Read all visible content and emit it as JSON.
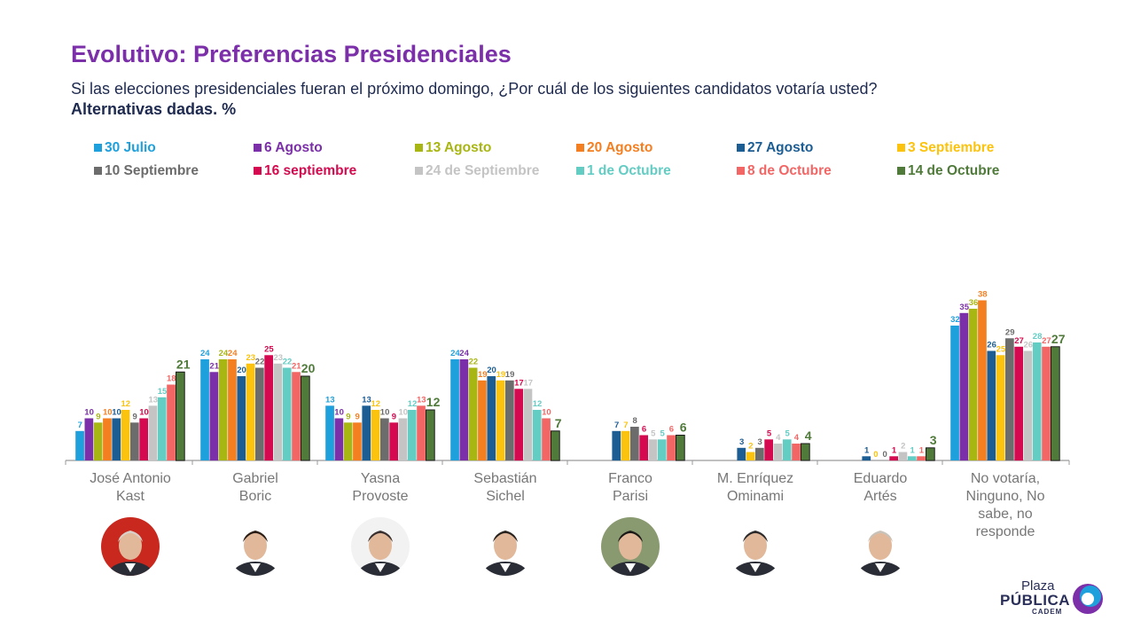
{
  "header": {
    "title": "Evolutivo: Preferencias Presidenciales",
    "subtitle": "Si las elecciones presidenciales fueran el próximo domingo, ¿Por cuál de los siguientes candidatos votaría usted?",
    "subtitle2": "Alternativas dadas. %"
  },
  "chart_data": {
    "type": "bar",
    "categories": [
      "José Antonio\nKast",
      "Gabriel\nBoric",
      "Yasna\nProvoste",
      "Sebastián\nSichel",
      "Franco\nParisi",
      "M. Enríquez\nOminami",
      "Eduardo\nArtés",
      "No votaría,\nNinguno, No\nsabe, no\nresponde"
    ],
    "series": [
      {
        "name": "30 Julio",
        "color": "#1ea0dc",
        "values": [
          7,
          24,
          13,
          24,
          null,
          null,
          null,
          32
        ]
      },
      {
        "name": "6 Agosto",
        "color": "#7b2fa8",
        "values": [
          10,
          21,
          10,
          24,
          null,
          null,
          null,
          35
        ]
      },
      {
        "name": "13 Agosto",
        "color": "#a8b613",
        "values": [
          9,
          24,
          9,
          22,
          null,
          null,
          null,
          36
        ]
      },
      {
        "name": "20 Agosto",
        "color": "#f37f21",
        "values": [
          10,
          24,
          9,
          19,
          null,
          null,
          null,
          38
        ]
      },
      {
        "name": "27 Agosto",
        "color": "#1c5d94",
        "values": [
          10,
          20,
          13,
          20,
          7,
          3,
          1,
          26
        ]
      },
      {
        "name": "3 Septiembre",
        "color": "#fbc30e",
        "values": [
          12,
          23,
          12,
          19,
          7,
          2,
          0,
          25
        ]
      },
      {
        "name": "10 Septiembre",
        "color": "#6c6c6c",
        "values": [
          9,
          22,
          10,
          19,
          8,
          3,
          0,
          29
        ]
      },
      {
        "name": "16 septiembre",
        "color": "#d5094f",
        "values": [
          10,
          25,
          9,
          17,
          6,
          5,
          1,
          27
        ]
      },
      {
        "name": "24 de Septiembre",
        "color": "#c4c4c4",
        "values": [
          13,
          23,
          10,
          17,
          5,
          4,
          2,
          26
        ]
      },
      {
        "name": "1 de Octubre",
        "color": "#63cdc4",
        "values": [
          15,
          22,
          12,
          12,
          5,
          5,
          1,
          28
        ]
      },
      {
        "name": "8 de Octubre",
        "color": "#f26665",
        "values": [
          18,
          21,
          13,
          10,
          6,
          4,
          1,
          27
        ]
      },
      {
        "name": "14 de Octubre",
        "color": "#4f7a3a",
        "values": [
          21,
          20,
          12,
          7,
          6,
          4,
          3,
          27
        ]
      }
    ],
    "ylim": [
      0,
      40
    ],
    "grid": false,
    "legend_position": "top"
  },
  "candidates": [
    {
      "avatar_icon": "person-photo-icon"
    },
    {
      "avatar_icon": "person-photo-icon"
    },
    {
      "avatar_icon": "person-photo-icon"
    },
    {
      "avatar_icon": "person-photo-icon"
    },
    {
      "avatar_icon": "person-photo-icon"
    },
    {
      "avatar_icon": "person-photo-icon"
    },
    {
      "avatar_icon": "person-photo-icon"
    }
  ],
  "logo": {
    "line1": "Plaza",
    "line2": "PÚBLICA",
    "line3": "CADEM"
  }
}
